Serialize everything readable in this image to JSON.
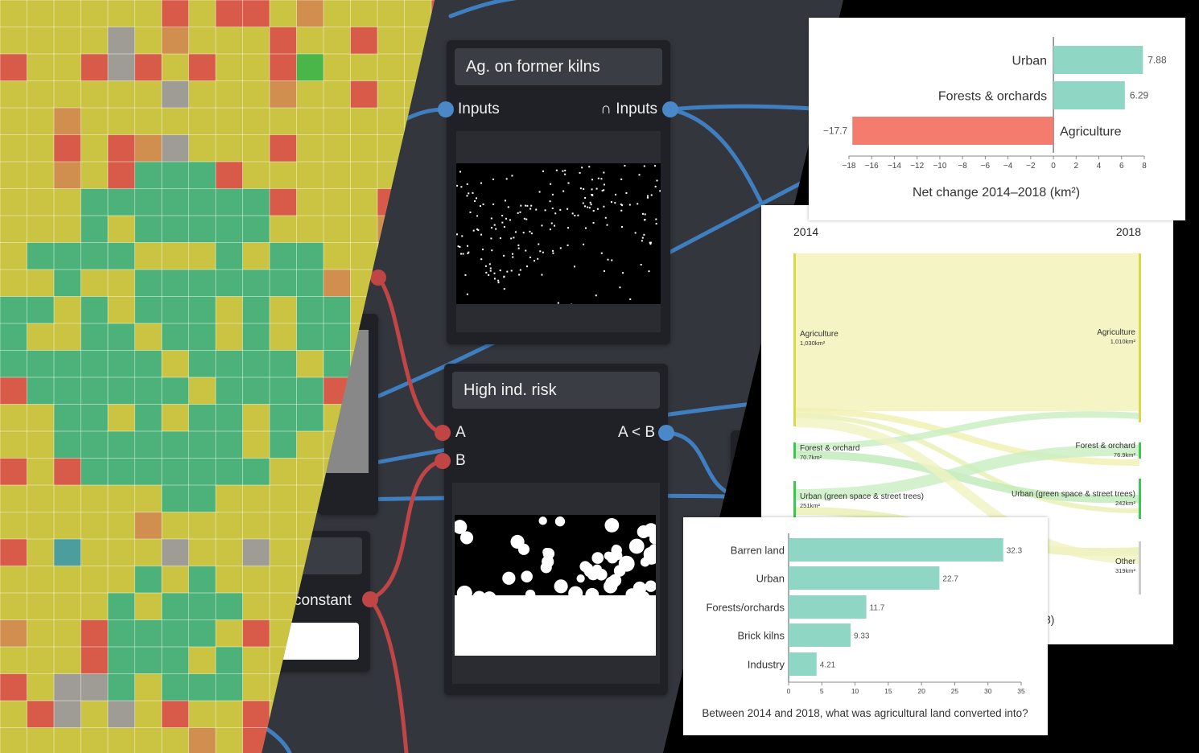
{
  "editor": {
    "nodes": {
      "kilns": {
        "title": "Ag. on former kilns",
        "input_label": "Inputs",
        "output_label": "∩ Inputs"
      },
      "risk": {
        "title": "High ind. risk",
        "input_a_label": "A",
        "input_b_label": "B",
        "output_label": "A < B"
      },
      "constant": {
        "output_label": "constant"
      }
    },
    "colors": {
      "blue_wire": "#3f7fc0",
      "red_wire": "#c04545",
      "node_bg": "#1f2126",
      "band_bg": "#33363d"
    }
  },
  "map": {
    "legend_colors": {
      "agriculture": "#cbc444",
      "forest": "#3fb080",
      "urban": "#d9504a",
      "brick_kiln": "#d08a50",
      "barren": "#9a98a0",
      "water": "#3e9aa8",
      "green": "#3cb54a"
    }
  },
  "net_change_chart": {
    "chart_data": {
      "type": "bar",
      "orientation": "horizontal",
      "categories": [
        "Urban",
        "Forests & orchards",
        "Agriculture"
      ],
      "values": [
        7.88,
        6.29,
        -17.7
      ],
      "value_labels": [
        "7.88",
        "6.29",
        "−17.7"
      ],
      "xlabel": "Net change 2014–2018 (km²)",
      "xlim": [
        -18,
        8
      ],
      "xticks": [
        "−18",
        "−16",
        "−14",
        "−12",
        "−10",
        "−8",
        "−6",
        "−4",
        "−2",
        "0",
        "2",
        "4",
        "6",
        "8"
      ],
      "colors": {
        "positive": "#8fd6c5",
        "negative": "#f47c6e"
      }
    }
  },
  "sankey_chart": {
    "chart_data": {
      "type": "sankey",
      "left_year": "2014",
      "right_year": "2018",
      "left_nodes": [
        {
          "name": "Agriculture",
          "value_label": "1,030km²"
        },
        {
          "name": "Forest & orchard",
          "value_label": "70.7km²"
        },
        {
          "name": "Urban (green space & street trees)",
          "value_label": "251km²"
        }
      ],
      "right_nodes": [
        {
          "name": "Agriculture",
          "value_label": "1,010km²"
        },
        {
          "name": "Forest & orchard",
          "value_label": "76.9km²"
        },
        {
          "name": "Urban (green space & street trees)",
          "value_label": "242km²"
        },
        {
          "name": "Other",
          "value_label": "319km²"
        }
      ],
      "partial_caption": "8)",
      "colors": {
        "agriculture": "#f4f4c4",
        "agriculture_bar": "#d8d84a",
        "forest": "#3cc850",
        "urban": "#b8eeb0"
      }
    }
  },
  "conversion_chart": {
    "chart_data": {
      "type": "bar",
      "orientation": "horizontal",
      "categories": [
        "Barren land",
        "Urban",
        "Forests/orchards",
        "Brick kilns",
        "Industry"
      ],
      "values": [
        32.3,
        22.7,
        11.7,
        9.33,
        4.21
      ],
      "value_labels": [
        "32.3",
        "22.7",
        "11.7",
        "9.33",
        "4.21"
      ],
      "xlim": [
        0,
        35
      ],
      "xticks": [
        "0",
        "5",
        "10",
        "15",
        "20",
        "25",
        "30",
        "35"
      ],
      "title": "Between 2014 and 2018, what was agricultural land converted into?",
      "color": "#8fd6c5"
    }
  }
}
